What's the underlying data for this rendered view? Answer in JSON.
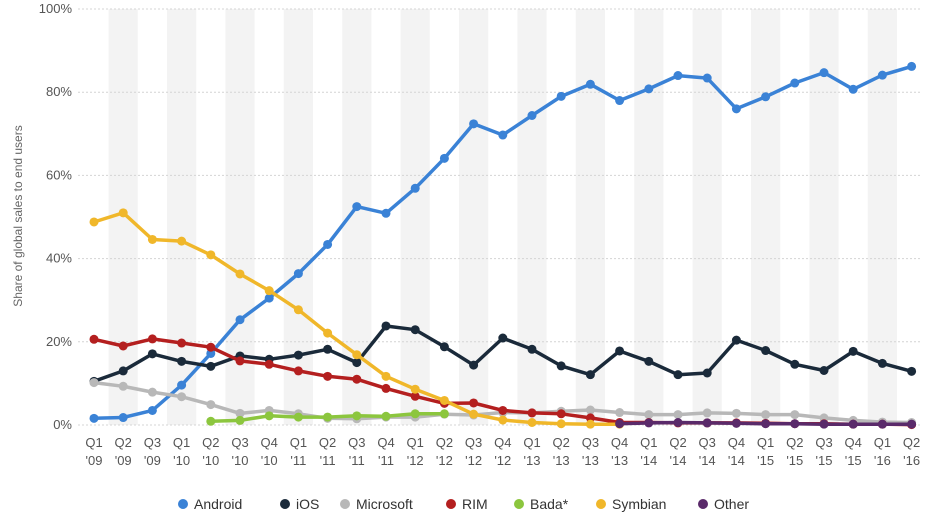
{
  "chart_data": {
    "type": "line",
    "title": "",
    "xlabel": "",
    "ylabel": "Share of global sales to end users",
    "ylim": [
      0,
      100
    ],
    "yticks": [
      "0%",
      "20%",
      "40%",
      "60%",
      "80%",
      "100%"
    ],
    "ytick_values": [
      0,
      20,
      40,
      60,
      80,
      100
    ],
    "grid": true,
    "legend_position": "bottom",
    "categories": [
      {
        "q": "Q1",
        "y": "'09"
      },
      {
        "q": "Q2",
        "y": "'09"
      },
      {
        "q": "Q3",
        "y": "'09"
      },
      {
        "q": "Q1",
        "y": "'10"
      },
      {
        "q": "Q2",
        "y": "'10"
      },
      {
        "q": "Q3",
        "y": "'10"
      },
      {
        "q": "Q4",
        "y": "'10"
      },
      {
        "q": "Q1",
        "y": "'11"
      },
      {
        "q": "Q2",
        "y": "'11"
      },
      {
        "q": "Q3",
        "y": "'11"
      },
      {
        "q": "Q4",
        "y": "'11"
      },
      {
        "q": "Q1",
        "y": "'12"
      },
      {
        "q": "Q2",
        "y": "'12"
      },
      {
        "q": "Q3",
        "y": "'12"
      },
      {
        "q": "Q4",
        "y": "'12"
      },
      {
        "q": "Q1",
        "y": "'13"
      },
      {
        "q": "Q2",
        "y": "'13"
      },
      {
        "q": "Q3",
        "y": "'13"
      },
      {
        "q": "Q4",
        "y": "'13"
      },
      {
        "q": "Q1",
        "y": "'14"
      },
      {
        "q": "Q2",
        "y": "'14"
      },
      {
        "q": "Q3",
        "y": "'14"
      },
      {
        "q": "Q4",
        "y": "'14"
      },
      {
        "q": "Q1",
        "y": "'15"
      },
      {
        "q": "Q2",
        "y": "'15"
      },
      {
        "q": "Q3",
        "y": "'15"
      },
      {
        "q": "Q4",
        "y": "'15"
      },
      {
        "q": "Q1",
        "y": "'16"
      },
      {
        "q": "Q2",
        "y": "'16"
      }
    ],
    "series": [
      {
        "name": "Android",
        "color": "#3a82d6",
        "values": [
          1.6,
          1.8,
          3.5,
          9.6,
          17.2,
          25.3,
          30.5,
          36.4,
          43.4,
          52.5,
          50.9,
          56.9,
          64.1,
          72.4,
          69.7,
          74.4,
          79.0,
          81.9,
          78.0,
          80.8,
          84.0,
          83.4,
          76.0,
          78.9,
          82.2,
          84.7,
          80.7,
          84.1,
          86.2
        ]
      },
      {
        "name": "iOS",
        "color": "#1a2a3a",
        "values": [
          10.5,
          13.0,
          17.1,
          15.3,
          14.1,
          16.6,
          15.8,
          16.8,
          18.2,
          15.0,
          23.8,
          22.9,
          18.8,
          14.4,
          20.9,
          18.2,
          14.2,
          12.1,
          17.8,
          15.3,
          12.1,
          12.5,
          20.4,
          17.9,
          14.6,
          13.1,
          17.7,
          14.8,
          12.9
        ]
      },
      {
        "name": "Microsoft",
        "color": "#b8b8b8",
        "values": [
          10.2,
          9.3,
          7.9,
          6.8,
          4.9,
          2.8,
          3.5,
          2.7,
          1.6,
          1.5,
          1.9,
          1.9,
          2.6,
          2.4,
          3.0,
          2.9,
          3.3,
          3.6,
          3.0,
          2.5,
          2.5,
          2.9,
          2.8,
          2.5,
          2.5,
          1.7,
          1.1,
          0.7,
          0.6
        ]
      },
      {
        "name": "RIM",
        "color": "#b41f1f",
        "values": [
          20.6,
          19.0,
          20.7,
          19.7,
          18.7,
          15.4,
          14.6,
          13.0,
          11.7,
          11.0,
          8.8,
          6.9,
          5.2,
          5.3,
          3.5,
          2.9,
          2.7,
          1.7,
          0.6,
          0.6,
          0.5,
          0.5,
          0.5,
          0.4,
          0.3,
          0.3,
          0.2,
          0.2,
          0.1
        ]
      },
      {
        "name": "Bada*",
        "color": "#8cc63e",
        "values": [
          null,
          null,
          null,
          null,
          0.9,
          1.1,
          2.2,
          1.9,
          1.9,
          2.2,
          2.1,
          2.7,
          2.7,
          null,
          null,
          null,
          null,
          null,
          null,
          null,
          null,
          null,
          null,
          null,
          null,
          null,
          null,
          null,
          null
        ]
      },
      {
        "name": "Symbian",
        "color": "#f0b72a",
        "values": [
          48.8,
          51.0,
          44.6,
          44.2,
          40.9,
          36.3,
          32.3,
          27.7,
          22.1,
          16.9,
          11.7,
          8.6,
          5.9,
          2.6,
          1.2,
          0.6,
          0.3,
          0.2,
          0.2,
          null,
          null,
          null,
          null,
          null,
          null,
          null,
          null,
          null,
          null
        ]
      },
      {
        "name": "Other",
        "color": "#5a2a6a",
        "values": [
          null,
          null,
          null,
          null,
          null,
          null,
          null,
          null,
          null,
          null,
          null,
          null,
          null,
          null,
          null,
          null,
          null,
          null,
          0.3,
          0.5,
          0.6,
          0.5,
          0.4,
          0.3,
          0.3,
          0.2,
          0.2,
          0.2,
          0.2
        ]
      }
    ]
  }
}
